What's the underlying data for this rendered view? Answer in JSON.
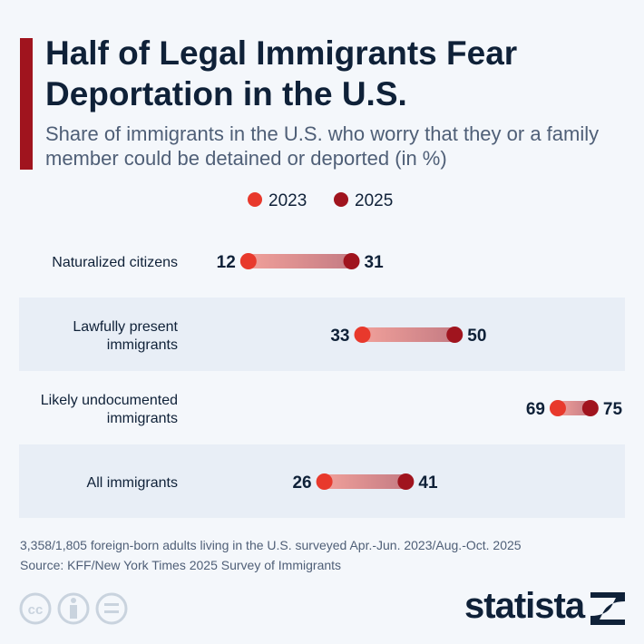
{
  "title": "Half of Legal Immigrants Fear Deportation in the U.S.",
  "subtitle": "Share of immigrants in the U.S. who worry that they or a family member could be detained or deported (in %)",
  "footnote": "3,358/1,805 foreign-born adults living in the U.S. surveyed Apr.-Jun. 2023/Aug.-Oct. 2025",
  "source": "Source: KFF/New York Times 2025 Survey of Immigrants",
  "brand": "statista",
  "icons": [
    "cc-icon",
    "attribution-icon",
    "no-derivatives-icon"
  ],
  "chart_data": {
    "type": "dumbbell",
    "legend_position": "top-center",
    "series": [
      {
        "name": "2023",
        "color": "#e8392c"
      },
      {
        "name": "2025",
        "color": "#a0141e"
      }
    ],
    "categories": [
      "Naturalized citizens",
      "Lawfully present immigrants",
      "Likely undocumented immigrants",
      "All immigrants"
    ],
    "category_lines": [
      [
        "Naturalized citizens"
      ],
      [
        "Lawfully present",
        "immigrants"
      ],
      [
        "Likely undocumented",
        "immigrants"
      ],
      [
        "All immigrants"
      ]
    ],
    "values_2023": [
      12,
      33,
      69,
      26
    ],
    "values_2025": [
      31,
      50,
      75,
      41
    ]
  }
}
